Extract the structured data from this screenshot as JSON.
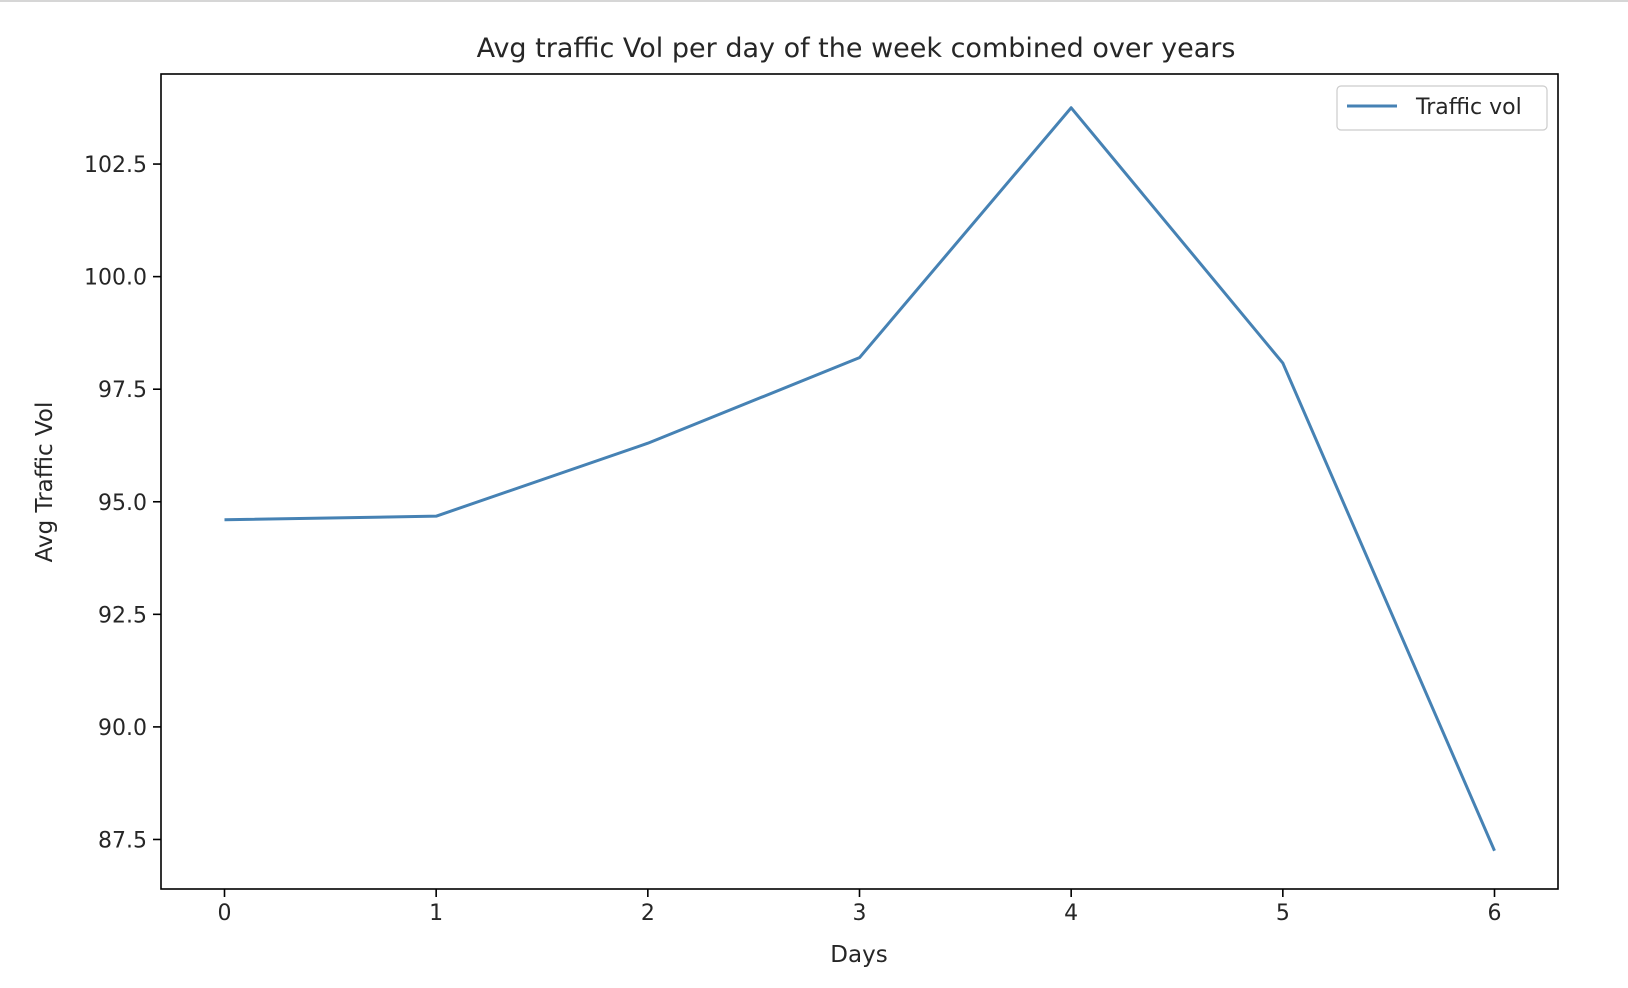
{
  "chart_data": {
    "type": "line",
    "title": "Avg traffic Vol per day of the week combined over years",
    "xlabel": "Days",
    "ylabel": "Avg Traffic Vol",
    "x": [
      0,
      1,
      2,
      3,
      4,
      5,
      6
    ],
    "series": [
      {
        "name": "Traffic vol",
        "color": "#4682b4",
        "values": [
          94.6,
          94.68,
          96.3,
          98.2,
          103.75,
          98.08,
          87.25
        ]
      }
    ],
    "xlim": [
      -0.3,
      6.3
    ],
    "ylim": [
      86.4,
      104.5
    ],
    "xticks": [
      0,
      1,
      2,
      3,
      4,
      5,
      6
    ],
    "xtick_labels": [
      "0",
      "1",
      "2",
      "3",
      "4",
      "5",
      "6"
    ],
    "yticks": [
      87.5,
      90.0,
      92.5,
      95.0,
      97.5,
      100.0,
      102.5
    ],
    "ytick_labels": [
      "87.5",
      "90.0",
      "92.5",
      "95.0",
      "97.5",
      "100.0",
      "102.5"
    ],
    "grid": false,
    "legend_position": "top-right"
  }
}
